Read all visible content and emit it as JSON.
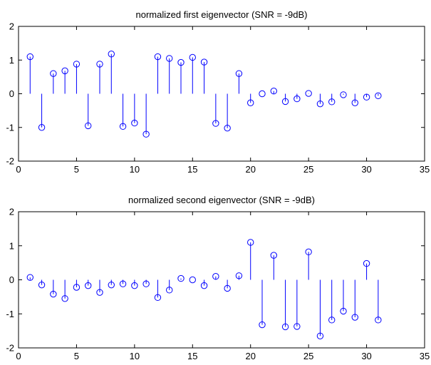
{
  "chart_data": [
    {
      "type": "stem",
      "title": "normalized first eigenvector (SNR = -9dB)",
      "xlabel": "",
      "ylabel": "",
      "xlim": [
        0,
        35
      ],
      "ylim": [
        -2,
        2
      ],
      "xticks": [
        0,
        5,
        10,
        15,
        20,
        25,
        30,
        35
      ],
      "yticks": [
        -2,
        -1,
        0,
        1,
        2
      ],
      "grid": false,
      "color": "#0000ff",
      "x": [
        1,
        2,
        3,
        4,
        5,
        6,
        7,
        8,
        9,
        10,
        11,
        12,
        13,
        14,
        15,
        16,
        17,
        18,
        19,
        20,
        21,
        22,
        23,
        24,
        25,
        26,
        27,
        28,
        29,
        30,
        31
      ],
      "values": [
        1.1,
        -1.0,
        0.6,
        0.68,
        0.88,
        -0.95,
        0.88,
        1.18,
        -0.97,
        -0.87,
        -1.2,
        1.1,
        1.05,
        0.93,
        1.08,
        0.94,
        -0.88,
        -1.02,
        0.6,
        -0.27,
        0.0,
        0.08,
        -0.23,
        -0.15,
        0.01,
        -0.3,
        -0.24,
        -0.03,
        -0.27,
        -0.1,
        -0.06
      ]
    },
    {
      "type": "stem",
      "title": "normalized second eigenvector (SNR = -9dB)",
      "xlabel": "",
      "ylabel": "",
      "xlim": [
        0,
        35
      ],
      "ylim": [
        -2,
        2
      ],
      "xticks": [
        0,
        5,
        10,
        15,
        20,
        25,
        30,
        35
      ],
      "yticks": [
        -2,
        -1,
        0,
        1,
        2
      ],
      "grid": false,
      "color": "#0000ff",
      "x": [
        1,
        2,
        3,
        4,
        5,
        6,
        7,
        8,
        9,
        10,
        11,
        12,
        13,
        14,
        15,
        16,
        17,
        18,
        19,
        20,
        21,
        22,
        23,
        24,
        25,
        26,
        27,
        28,
        29,
        30,
        31
      ],
      "values": [
        0.07,
        -0.15,
        -0.42,
        -0.55,
        -0.22,
        -0.17,
        -0.37,
        -0.15,
        -0.12,
        -0.17,
        -0.12,
        -0.52,
        -0.3,
        0.04,
        0.0,
        -0.17,
        0.1,
        -0.25,
        0.12,
        1.1,
        -1.32,
        0.72,
        -1.38,
        -1.37,
        0.82,
        -1.65,
        -1.18,
        -0.92,
        -1.1,
        0.48,
        -1.18
      ]
    }
  ]
}
